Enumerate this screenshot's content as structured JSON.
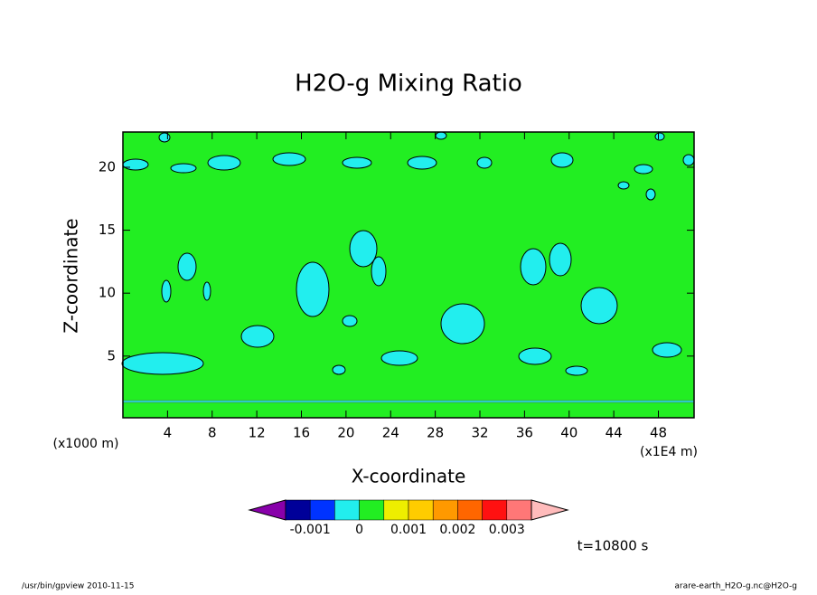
{
  "chart_data": {
    "type": "contour",
    "title": "H2O-g Mixing Ratio",
    "x_label": "X-coordinate",
    "y_label": "Z-coordinate",
    "x_unit": "(x1E4 m)",
    "y_unit": "(x1000 m)",
    "xlim": [
      0,
      51.2
    ],
    "xticks": [
      4,
      8,
      12,
      16,
      20,
      24,
      28,
      32,
      36,
      40,
      44,
      48
    ],
    "ylim": [
      0.1,
      22.8
    ],
    "yticks": [
      5,
      10,
      15,
      20
    ],
    "field_color": "#22ee22",
    "region_color": "#22eeee",
    "colorbar": {
      "lim": [
        -0.0015,
        0.0035
      ],
      "ticks": [
        -0.001,
        0,
        0.001,
        0.002,
        0.003
      ],
      "colors": [
        "#8800aa",
        "#000099",
        "#0033ff",
        "#22eeee",
        "#22ee22",
        "#eeee00",
        "#ffcc00",
        "#ff9900",
        "#ff6600",
        "#ff1111",
        "#ff7777",
        "#ffbbbb"
      ]
    },
    "time_label": "t=10800 s",
    "footer_left": "/usr/bin/gpview   2010-11-15",
    "footer_right": "arare-earth_H2O-g.nc@H2O-g"
  }
}
